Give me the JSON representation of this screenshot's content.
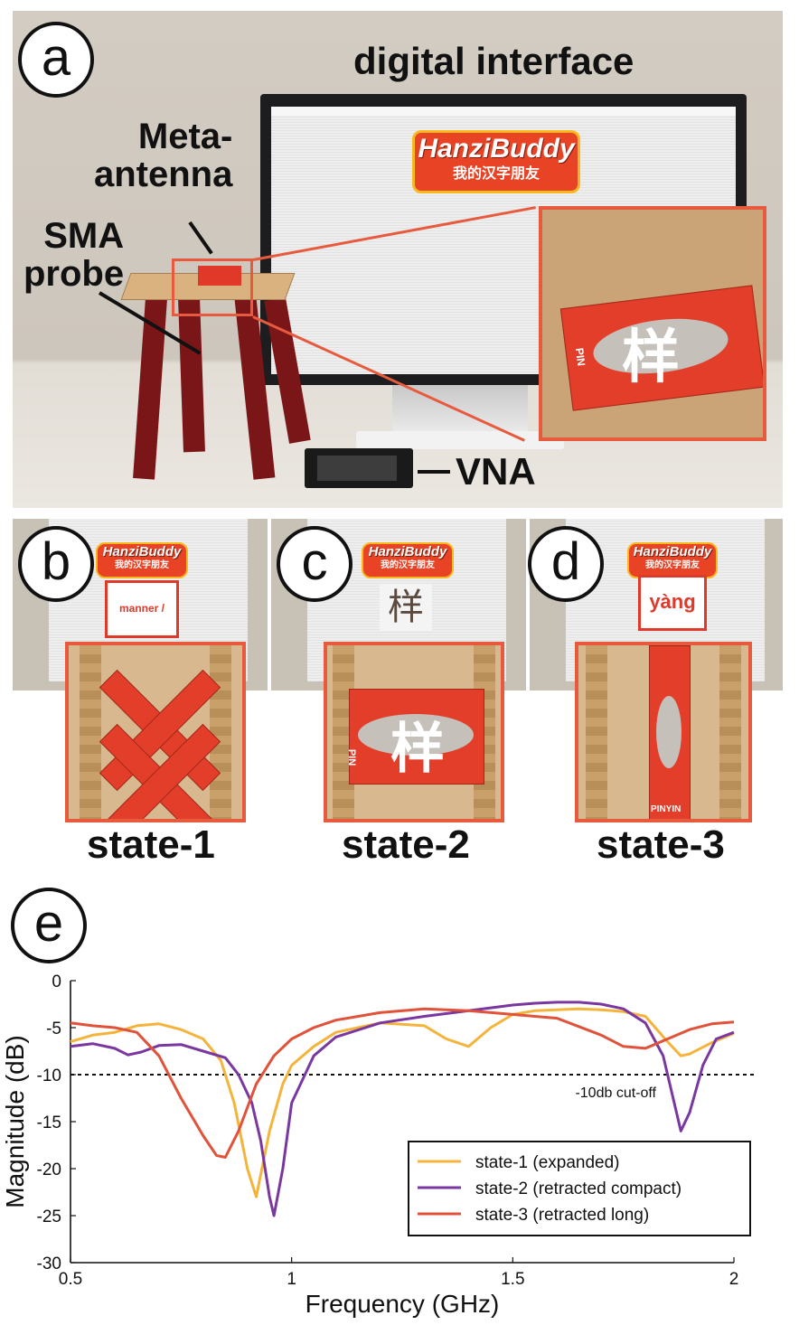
{
  "panels": {
    "a": {
      "letter": "a",
      "title": "digital interface",
      "meta_antenna": "Meta-\nantenna",
      "sma_probe": "SMA\nprobe",
      "vna": "VNA",
      "logo_name": "HanziBuddy",
      "logo_sub": "我的汉字朋友",
      "character": "样",
      "pin": "PIN"
    },
    "b": {
      "letter": "b",
      "logo_name": "HanziBuddy",
      "logo_sub": "我的汉字朋友",
      "display": "manner / way",
      "state": "state-1"
    },
    "c": {
      "letter": "c",
      "logo_name": "HanziBuddy",
      "logo_sub": "我的汉字朋友",
      "display": "样",
      "state": "state-2",
      "character": "样",
      "pin": "PIN"
    },
    "d": {
      "letter": "d",
      "logo_name": "HanziBuddy",
      "logo_sub": "我的汉字朋友",
      "display": "yàng",
      "state": "state-3",
      "pinyin": "PINYIN"
    },
    "e": {
      "letter": "e"
    }
  },
  "colors": {
    "accent_red": "#e85a3d",
    "state1": "#f4b43c",
    "state2": "#7a37a0",
    "state3": "#e0523a"
  },
  "chart_data": {
    "type": "line",
    "xlabel": "Frequency (GHz)",
    "ylabel": "Magnitude (dB)",
    "xlim": [
      0.5,
      2
    ],
    "ylim": [
      -30,
      0
    ],
    "xticks": [
      "0.5",
      "1",
      "1.5",
      "2"
    ],
    "yticks": [
      "0",
      "-5",
      "-10",
      "-15",
      "-20",
      "-25",
      "-30"
    ],
    "cutoff": {
      "value": -10,
      "label": "-10db cut-off"
    },
    "legend_position": "bottom-right",
    "series": [
      {
        "name": "state-1 (expanded)",
        "color": "#f4b43c",
        "x": [
          0.5,
          0.55,
          0.6,
          0.65,
          0.7,
          0.75,
          0.8,
          0.84,
          0.87,
          0.9,
          0.92,
          0.95,
          0.98,
          1.0,
          1.05,
          1.1,
          1.2,
          1.3,
          1.35,
          1.4,
          1.45,
          1.5,
          1.55,
          1.6,
          1.65,
          1.7,
          1.75,
          1.8,
          1.85,
          1.88,
          1.9,
          1.95,
          2.0
        ],
        "y": [
          -6.5,
          -5.8,
          -5.5,
          -4.8,
          -4.6,
          -5.2,
          -6.2,
          -8.5,
          -13,
          -20,
          -23,
          -16,
          -11,
          -9,
          -7,
          -5.5,
          -4.5,
          -4.8,
          -6.2,
          -7.0,
          -5.0,
          -3.6,
          -3.2,
          -3.1,
          -3.0,
          -3.1,
          -3.3,
          -3.8,
          -6.5,
          -8.0,
          -7.8,
          -6.6,
          -5.6
        ]
      },
      {
        "name": "state-2 (retracted compact)",
        "color": "#7a37a0",
        "x": [
          0.5,
          0.55,
          0.6,
          0.63,
          0.66,
          0.7,
          0.75,
          0.8,
          0.85,
          0.88,
          0.91,
          0.93,
          0.95,
          0.96,
          0.98,
          1.0,
          1.05,
          1.1,
          1.2,
          1.3,
          1.4,
          1.5,
          1.55,
          1.6,
          1.65,
          1.7,
          1.75,
          1.8,
          1.84,
          1.86,
          1.88,
          1.9,
          1.93,
          1.96,
          2.0
        ],
        "y": [
          -7,
          -6.7,
          -7.2,
          -7.9,
          -7.6,
          -6.9,
          -6.8,
          -7.5,
          -8.2,
          -10,
          -13,
          -17,
          -23,
          -25,
          -20,
          -13,
          -8,
          -6,
          -4.5,
          -3.8,
          -3.2,
          -2.6,
          -2.4,
          -2.3,
          -2.3,
          -2.5,
          -3.0,
          -4.5,
          -8,
          -12,
          -16,
          -14,
          -9,
          -6.2,
          -5.5
        ]
      },
      {
        "name": "state-3 (retracted long)",
        "color": "#e0523a",
        "x": [
          0.5,
          0.55,
          0.6,
          0.65,
          0.7,
          0.75,
          0.8,
          0.83,
          0.85,
          0.88,
          0.92,
          0.96,
          1.0,
          1.05,
          1.1,
          1.2,
          1.3,
          1.4,
          1.5,
          1.6,
          1.7,
          1.75,
          1.8,
          1.85,
          1.9,
          1.95,
          2.0
        ],
        "y": [
          -4.5,
          -4.8,
          -5.0,
          -5.5,
          -8.0,
          -12.5,
          -16.5,
          -18.6,
          -18.8,
          -16,
          -11,
          -8,
          -6.2,
          -5.0,
          -4.2,
          -3.4,
          -3.0,
          -3.2,
          -3.6,
          -4.0,
          -5.8,
          -7.0,
          -7.2,
          -6.2,
          -5.2,
          -4.6,
          -4.4
        ]
      }
    ]
  }
}
